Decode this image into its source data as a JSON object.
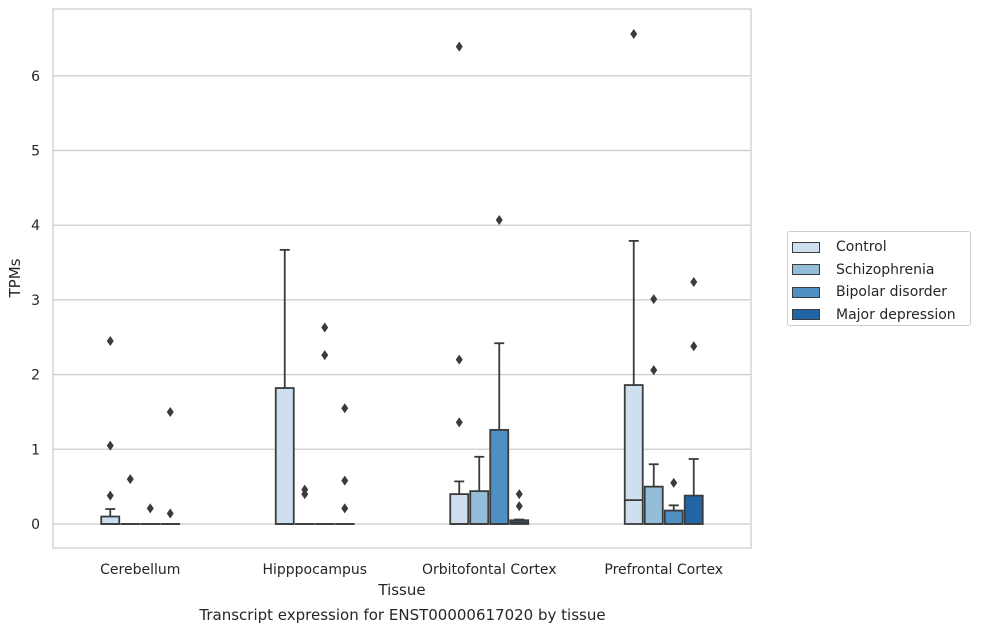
{
  "caption": "Transcript expression for ENST00000617020 by tissue",
  "chart_data": {
    "type": "box",
    "xlabel": "Tissue",
    "ylabel": "TPMs",
    "ylim": [
      -0.32,
      6.9
    ],
    "yticks": [
      0,
      1,
      2,
      3,
      4,
      5,
      6
    ],
    "grid": true,
    "legend_position": "right",
    "categories": [
      "Cerebellum",
      "Hipppocampus",
      "Orbitofontal Cortex",
      "Prefrontal Cortex"
    ],
    "series": [
      {
        "name": "Control",
        "color": "#cfdff0"
      },
      {
        "name": "Schizophrenia",
        "color": "#94bdd9"
      },
      {
        "name": "Bipolar disorder",
        "color": "#4f8fc2"
      },
      {
        "name": "Major depression",
        "color": "#2165a6"
      }
    ],
    "boxes": [
      {
        "category": 0,
        "series": 0,
        "q1": 0,
        "median": 0,
        "q3": 0.1,
        "whisker_low": 0,
        "whisker_high": 0.2,
        "outliers": [
          2.45,
          1.05,
          0.38
        ]
      },
      {
        "category": 0,
        "series": 1,
        "q1": 0,
        "median": 0,
        "q3": 0,
        "whisker_low": 0,
        "whisker_high": 0,
        "outliers": [
          0.6
        ]
      },
      {
        "category": 0,
        "series": 2,
        "q1": 0,
        "median": 0,
        "q3": 0,
        "whisker_low": 0,
        "whisker_high": 0,
        "outliers": [
          0.21
        ]
      },
      {
        "category": 0,
        "series": 3,
        "q1": 0,
        "median": 0,
        "q3": 0,
        "whisker_low": 0,
        "whisker_high": 0,
        "outliers": [
          1.5,
          0.14
        ]
      },
      {
        "category": 1,
        "series": 0,
        "q1": 0,
        "median": 0,
        "q3": 1.82,
        "whisker_low": 0,
        "whisker_high": 3.67,
        "outliers": []
      },
      {
        "category": 1,
        "series": 1,
        "q1": 0,
        "median": 0,
        "q3": 0,
        "whisker_low": 0,
        "whisker_high": 0,
        "outliers": [
          0.46,
          0.4
        ]
      },
      {
        "category": 1,
        "series": 2,
        "q1": 0,
        "median": 0,
        "q3": 0,
        "whisker_low": 0,
        "whisker_high": 0,
        "outliers": [
          2.63,
          2.26
        ]
      },
      {
        "category": 1,
        "series": 3,
        "q1": 0,
        "median": 0,
        "q3": 0,
        "whisker_low": 0,
        "whisker_high": 0,
        "outliers": [
          1.55,
          0.58,
          0.21
        ]
      },
      {
        "category": 2,
        "series": 0,
        "q1": 0,
        "median": 0,
        "q3": 0.4,
        "whisker_low": 0,
        "whisker_high": 0.57,
        "outliers": [
          6.39,
          2.2,
          1.36
        ]
      },
      {
        "category": 2,
        "series": 1,
        "q1": 0,
        "median": 0,
        "q3": 0.44,
        "whisker_low": 0,
        "whisker_high": 0.9,
        "outliers": []
      },
      {
        "category": 2,
        "series": 2,
        "q1": 0,
        "median": 0,
        "q3": 1.26,
        "whisker_low": 0,
        "whisker_high": 2.42,
        "outliers": [
          4.07
        ]
      },
      {
        "category": 2,
        "series": 3,
        "q1": 0,
        "median": 0.02,
        "q3": 0.05,
        "whisker_low": 0,
        "whisker_high": 0.06,
        "outliers": [
          0.4,
          0.24
        ]
      },
      {
        "category": 3,
        "series": 0,
        "q1": 0,
        "median": 0.32,
        "q3": 1.86,
        "whisker_low": 0,
        "whisker_high": 3.79,
        "outliers": [
          6.56
        ]
      },
      {
        "category": 3,
        "series": 1,
        "q1": 0,
        "median": 0,
        "q3": 0.5,
        "whisker_low": 0,
        "whisker_high": 0.8,
        "outliers": [
          3.01,
          2.06
        ]
      },
      {
        "category": 3,
        "series": 2,
        "q1": 0,
        "median": 0,
        "q3": 0.18,
        "whisker_low": 0,
        "whisker_high": 0.25,
        "outliers": [
          0.55
        ]
      },
      {
        "category": 3,
        "series": 3,
        "q1": 0,
        "median": 0,
        "q3": 0.38,
        "whisker_low": 0,
        "whisker_high": 0.87,
        "outliers": [
          3.24,
          2.38
        ]
      }
    ]
  }
}
